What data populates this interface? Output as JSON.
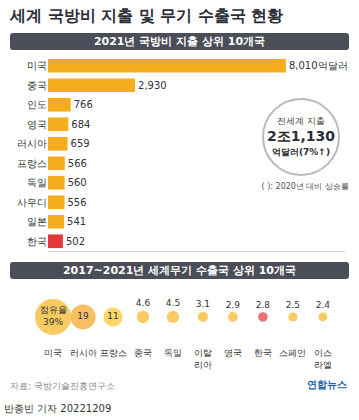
{
  "title": "세계 국방비 지출 및 무기 수출국 현황",
  "chart_data": [
    {
      "type": "bar",
      "title": "2021년 국방비 지출 상위 10개국",
      "orientation": "horizontal",
      "categories": [
        "미국",
        "중국",
        "인도",
        "영국",
        "러시아",
        "프랑스",
        "독일",
        "사우디",
        "일본",
        "한국"
      ],
      "values": [
        8010,
        2930,
        766,
        684,
        659,
        566,
        560,
        556,
        541,
        502
      ],
      "value_labels": [
        "8,010억달러",
        "2,930",
        "766",
        "684",
        "659",
        "566",
        "560",
        "556",
        "541",
        "502"
      ],
      "colors": [
        "#f5ad1f",
        "#f5ad1f",
        "#f5ad1f",
        "#f5ad1f",
        "#f5ad1f",
        "#f5ad1f",
        "#f5ad1f",
        "#f5ad1f",
        "#f5ad1f",
        "#e3373a"
      ],
      "data_labels": true,
      "tick_labels": "y",
      "grid": false,
      "xlim": [
        0,
        10000
      ],
      "annotations": [
        "전세계 지출",
        "2조1,130",
        "억달러(7%↑)",
        "( ): 2020년 대비 상승률"
      ]
    },
    {
      "type": "scatter",
      "marker": "circle",
      "title": "2017~2021년 세계무기 수출국 상위 10개국",
      "categories": [
        "미국",
        "러시아",
        "프랑스",
        "중국",
        "독일",
        "이탈리아",
        "영국",
        "한국",
        "스페인",
        "이스라엘"
      ],
      "values": [
        39,
        19,
        11,
        4.6,
        4.5,
        3.1,
        2.9,
        2.8,
        2.5,
        2.4
      ],
      "value_labels": [
        "점유율 39%",
        "19",
        "11",
        "4.6",
        "4.5",
        "3.1",
        "2.9",
        "2.8",
        "2.5",
        "2.4"
      ],
      "colors": [
        "#f5b41f",
        "#f5a21f",
        "#f7c42a",
        "#f5b41f",
        "#f5b41f",
        "#f5b41f",
        "#f5b41f",
        "#e3373a",
        "#f5b41f",
        "#f5b41f"
      ],
      "data_labels": true,
      "tick_labels": "x",
      "grid": false
    }
  ],
  "source": "자료: 국방기술진흥연구소",
  "logo": "연합뉴스",
  "credit": "반종빈 기자 20221209"
}
